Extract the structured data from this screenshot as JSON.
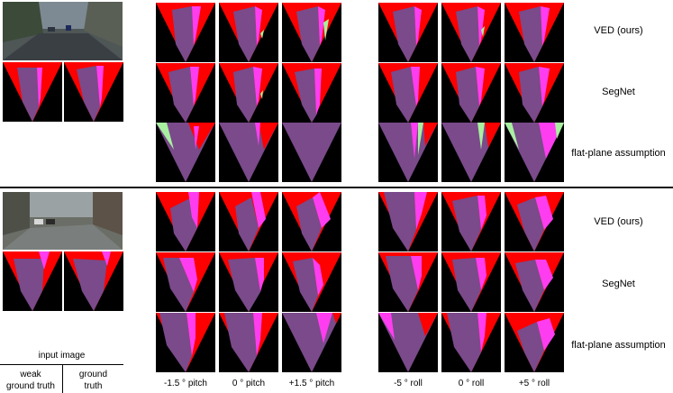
{
  "row_labels": [
    "VED (ours)",
    "SegNet",
    "flat-plane assumption",
    "VED (ours)",
    "SegNet",
    "flat-plane assumption"
  ],
  "column_labels": [
    "-1.5 ° pitch",
    "0 ° pitch",
    "+1.5 ° pitch",
    "-5 ° roll",
    "0 ° roll",
    "+5 ° roll"
  ],
  "legend": {
    "input_image": "input image",
    "weak_line1": "weak",
    "weak_line2": "ground truth",
    "gt_line1": "ground",
    "gt_line2": "truth"
  },
  "colors": {
    "road": "#7a4a8a",
    "sidewalk": "#ff3df0",
    "background": "#ff0000",
    "vegetation": "#a8f0a0",
    "outside": "#000000"
  }
}
